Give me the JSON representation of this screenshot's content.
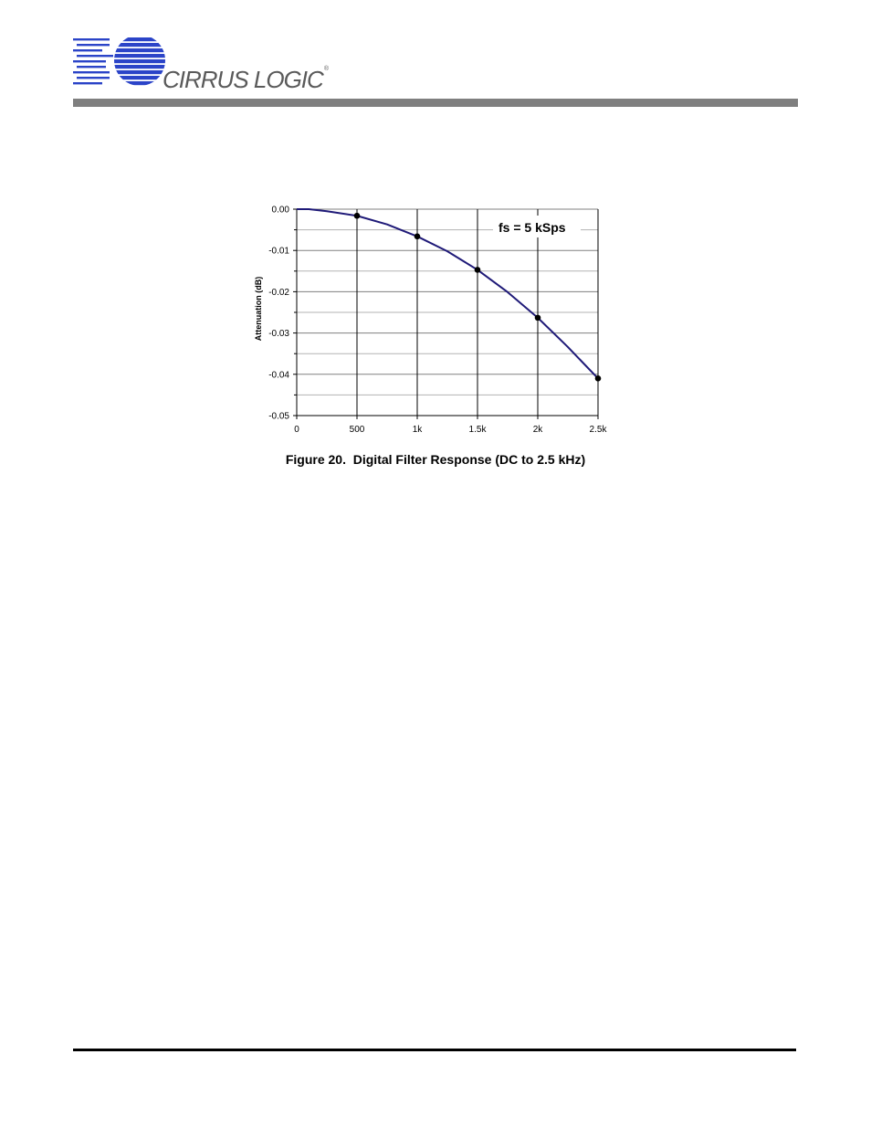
{
  "header": {
    "brand": "CIRRUS LOGIC",
    "trademark": "®",
    "logo_color": "#2b44c8",
    "bar_color": "#7f7f7f"
  },
  "figure": {
    "caption": "Figure 20.  Digital Filter Response (DC to 2.5 kHz)"
  },
  "chart_data": {
    "type": "line",
    "title": "",
    "xlabel": "",
    "ylabel": "Attenuation (dB)",
    "annotation": "fs = 5 kSps",
    "xlim": [
      0,
      2500
    ],
    "ylim": [
      -0.05,
      0.0
    ],
    "x_ticks": [
      {
        "value": 0,
        "label": "0"
      },
      {
        "value": 500,
        "label": "500"
      },
      {
        "value": 1000,
        "label": "1k"
      },
      {
        "value": 1500,
        "label": "1.5k"
      },
      {
        "value": 2000,
        "label": "2k"
      },
      {
        "value": 2500,
        "label": "2.5k"
      }
    ],
    "y_ticks": [
      {
        "value": 0.0,
        "label": "0.00"
      },
      {
        "value": -0.01,
        "label": "-0.01"
      },
      {
        "value": -0.02,
        "label": "-0.02"
      },
      {
        "value": -0.03,
        "label": "-0.03"
      },
      {
        "value": -0.04,
        "label": "-0.04"
      },
      {
        "value": -0.05,
        "label": "-0.05"
      }
    ],
    "y_minor_ticks": [
      -0.005,
      -0.015,
      -0.025,
      -0.035,
      -0.045
    ],
    "grid": true,
    "series": [
      {
        "color": "#1f1a78",
        "curve": {
          "x": [
            0,
            100,
            250,
            500,
            750,
            1000,
            1250,
            1500,
            1750,
            2000,
            2250,
            2500
          ],
          "y": [
            0.0,
            0.0,
            -0.0005,
            -0.0016,
            -0.0037,
            -0.0066,
            -0.0102,
            -0.0147,
            -0.0201,
            -0.0263,
            -0.0334,
            -0.041
          ]
        },
        "markers": {
          "x": [
            500,
            1000,
            1500,
            2000,
            2500
          ],
          "y": [
            -0.0016,
            -0.0066,
            -0.0147,
            -0.0263,
            -0.041
          ]
        }
      }
    ]
  }
}
